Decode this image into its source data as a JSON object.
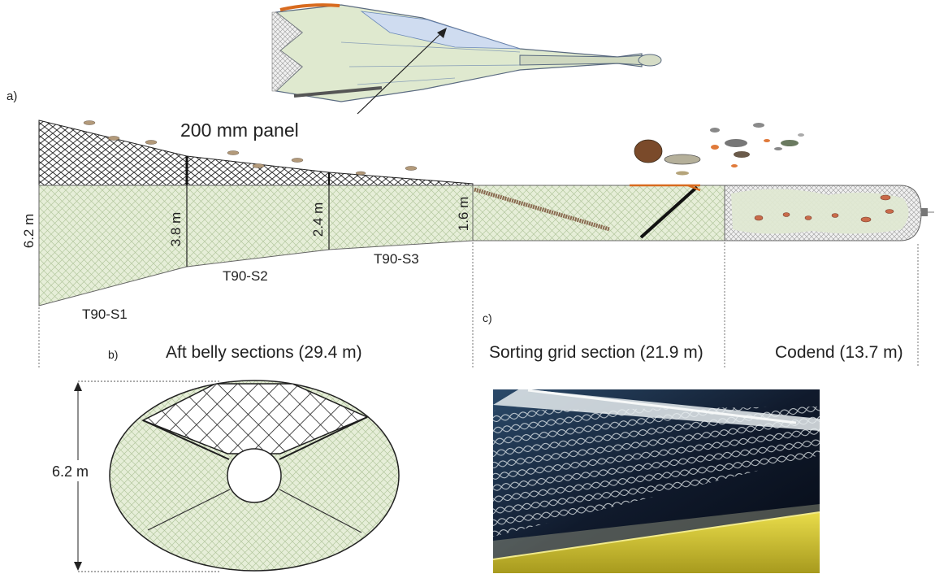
{
  "panel_labels": {
    "a": "a)",
    "b": "b)",
    "c": "c)"
  },
  "callout": "200 mm panel",
  "heights": {
    "s1": "6.2 m",
    "s2": "3.8 m",
    "s3": "2.4 m",
    "grid": "1.6 m"
  },
  "section_names": {
    "s1": "T90-S1",
    "s2": "T90-S2",
    "s3": "T90-S3"
  },
  "section_lengths": {
    "aft_belly": "Aft belly sections (29.4 m)",
    "sorting_grid": "Sorting grid section (21.9 m)",
    "codend": "Codend (13.7 m)"
  },
  "cross_section": {
    "diameter": "6.2 m"
  },
  "colors": {
    "net_green": "#e4edd6",
    "mesh_line": "#b8cba4",
    "panel_mesh": "#333333",
    "orange": "#d86a1e",
    "blue_panel": "#cfdcf0",
    "photo_bg": "#0e1420",
    "photo_yellow": "#d9cc3a"
  }
}
